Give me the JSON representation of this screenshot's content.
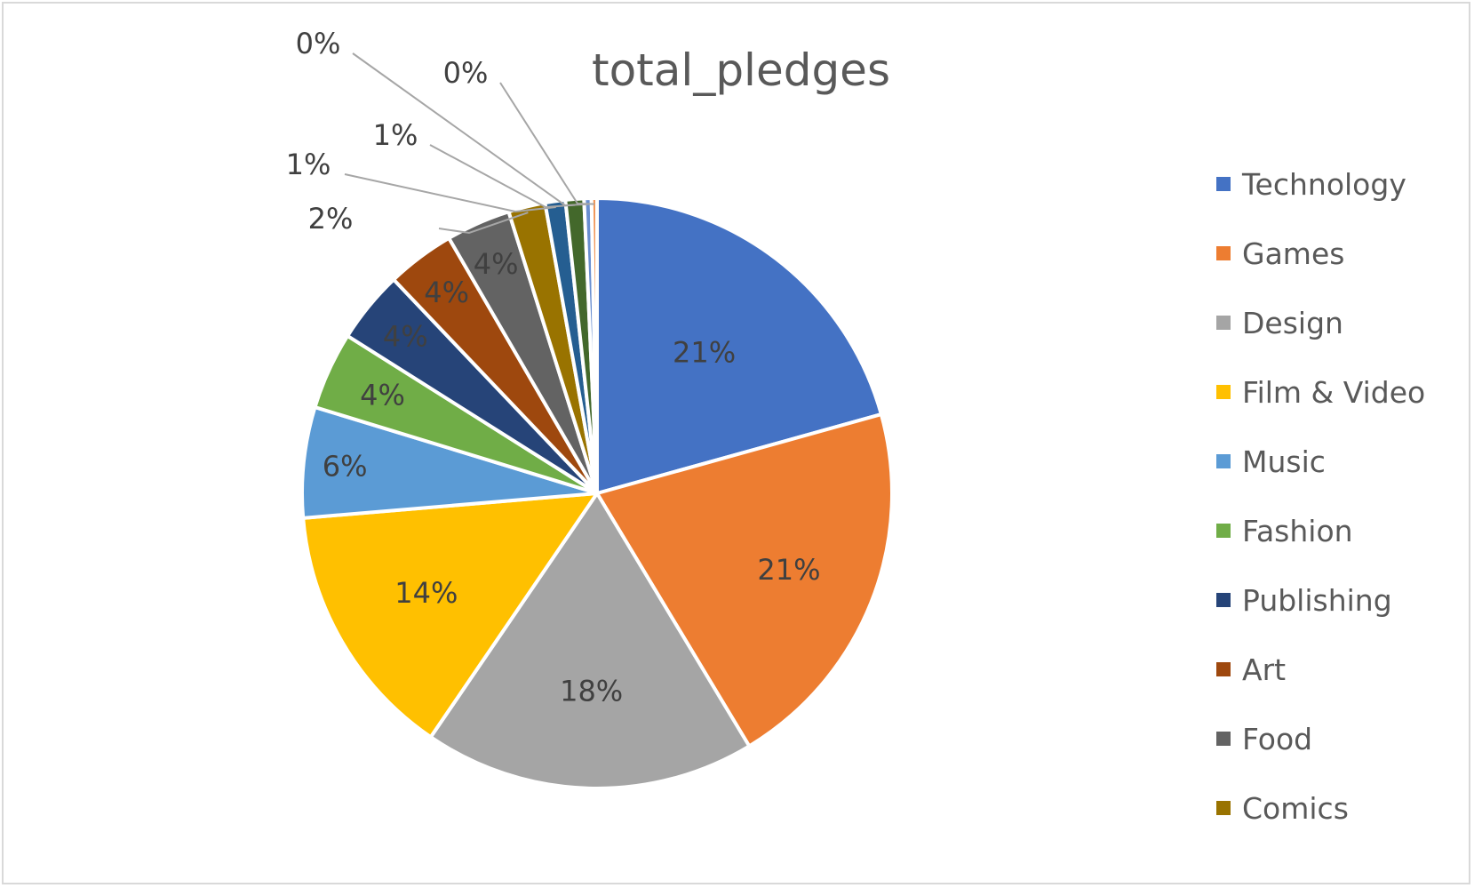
{
  "chart_data": {
    "type": "pie",
    "title": "total_pledges",
    "legend_position": "right",
    "categories": [
      "Technology",
      "Games",
      "Design",
      "Film & Video",
      "Music",
      "Fashion",
      "Publishing",
      "Art",
      "Food",
      "Comics",
      "",
      "",
      "",
      ""
    ],
    "values": [
      21,
      21,
      18,
      14,
      6,
      4,
      4,
      4,
      4,
      2,
      1,
      1,
      0,
      0
    ],
    "shares": [
      0.205,
      0.205,
      0.18,
      0.14,
      0.06,
      0.042,
      0.039,
      0.037,
      0.035,
      0.02,
      0.011,
      0.01,
      0.004,
      0.003
    ],
    "data_labels": [
      "21%",
      "21%",
      "18%",
      "14%",
      "6%",
      "4%",
      "4%",
      "4%",
      "4%",
      "2%",
      "1%",
      "1%",
      "0%",
      "0%"
    ],
    "legend_entries": [
      "Technology",
      "Games",
      "Design",
      "Film & Video",
      "Music",
      "Fashion",
      "Publishing",
      "Art",
      "Food",
      "Comics"
    ],
    "colors": [
      "#4472C4",
      "#ED7D31",
      "#A5A5A5",
      "#FFC000",
      "#5B9BD5",
      "#70AD47",
      "#264478",
      "#9E480E",
      "#636363",
      "#997300",
      "#255E91",
      "#43682B",
      "#698ED0",
      "#F1975A"
    ]
  }
}
